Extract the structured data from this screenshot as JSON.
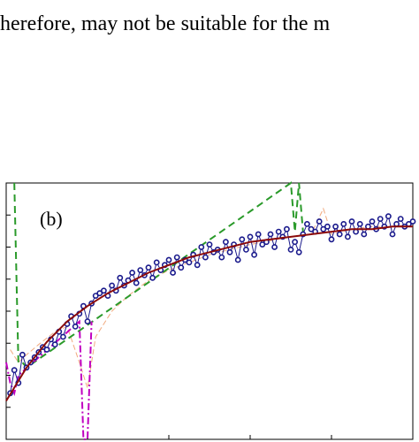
{
  "body_text": "herefore, may not be suitable for the m",
  "figure": {
    "panel_label": "(b)"
  },
  "chart_data": {
    "type": "scatter",
    "title": "",
    "xlabel": "",
    "ylabel": "",
    "xlim": [
      0,
      100
    ],
    "ylim": [
      0,
      100
    ],
    "grid": false,
    "series": [
      {
        "style": "markers-with-thin-line",
        "color": "#1a1a8c",
        "values": [
          [
            1,
            18
          ],
          [
            2,
            27
          ],
          [
            3,
            22
          ],
          [
            4,
            33
          ],
          [
            5,
            28
          ],
          [
            6,
            30
          ],
          [
            7,
            32
          ],
          [
            8,
            34
          ],
          [
            9,
            36
          ],
          [
            10,
            35
          ],
          [
            11,
            39
          ],
          [
            12,
            37
          ],
          [
            13,
            42
          ],
          [
            14,
            40
          ],
          [
            15,
            45
          ],
          [
            16,
            48
          ],
          [
            17,
            44
          ],
          [
            18,
            49
          ],
          [
            19,
            52
          ],
          [
            20,
            46
          ],
          [
            21,
            53
          ],
          [
            22,
            56
          ],
          [
            23,
            57
          ],
          [
            24,
            58
          ],
          [
            25,
            56
          ],
          [
            26,
            60
          ],
          [
            27,
            58
          ],
          [
            28,
            63
          ],
          [
            29,
            60
          ],
          [
            30,
            62
          ],
          [
            31,
            65
          ],
          [
            32,
            61
          ],
          [
            33,
            66
          ],
          [
            34,
            64
          ],
          [
            35,
            67
          ],
          [
            36,
            63
          ],
          [
            37,
            69
          ],
          [
            38,
            66
          ],
          [
            39,
            68
          ],
          [
            40,
            70
          ],
          [
            41,
            65
          ],
          [
            42,
            71
          ],
          [
            43,
            67
          ],
          [
            44,
            70
          ],
          [
            45,
            69
          ],
          [
            46,
            72
          ],
          [
            47,
            68
          ],
          [
            48,
            75
          ],
          [
            49,
            71
          ],
          [
            50,
            76
          ],
          [
            51,
            73
          ],
          [
            52,
            74
          ],
          [
            53,
            71
          ],
          [
            54,
            77
          ],
          [
            55,
            73
          ],
          [
            56,
            76
          ],
          [
            57,
            70
          ],
          [
            58,
            78
          ],
          [
            59,
            74
          ],
          [
            60,
            79
          ],
          [
            61,
            72
          ],
          [
            62,
            80
          ],
          [
            63,
            76
          ],
          [
            64,
            77
          ],
          [
            65,
            80
          ],
          [
            66,
            75
          ],
          [
            67,
            81
          ],
          [
            68,
            79
          ],
          [
            69,
            82
          ],
          [
            70,
            74
          ],
          [
            71,
            77
          ],
          [
            72,
            73
          ],
          [
            73,
            80
          ],
          [
            74,
            84
          ],
          [
            75,
            82
          ],
          [
            76,
            81
          ],
          [
            77,
            85
          ],
          [
            78,
            82
          ],
          [
            79,
            83
          ],
          [
            80,
            78
          ],
          [
            81,
            83
          ],
          [
            82,
            80
          ],
          [
            83,
            84
          ],
          [
            84,
            79
          ],
          [
            85,
            85
          ],
          [
            86,
            81
          ],
          [
            87,
            84
          ],
          [
            88,
            80
          ],
          [
            89,
            83
          ],
          [
            90,
            85
          ],
          [
            91,
            82
          ],
          [
            92,
            86
          ],
          [
            93,
            83
          ],
          [
            94,
            87
          ],
          [
            95,
            80
          ],
          [
            96,
            84
          ],
          [
            97,
            86
          ],
          [
            98,
            83
          ],
          [
            99,
            84
          ],
          [
            100,
            85
          ]
        ]
      },
      {
        "style": "solid-fit",
        "color": "#8b0a0a",
        "values": [
          [
            0,
            15
          ],
          [
            5,
            28
          ],
          [
            10,
            38
          ],
          [
            15,
            46
          ],
          [
            20,
            52
          ],
          [
            25,
            57
          ],
          [
            30,
            61
          ],
          [
            35,
            65
          ],
          [
            40,
            68
          ],
          [
            45,
            71
          ],
          [
            50,
            73
          ],
          [
            55,
            75
          ],
          [
            60,
            77
          ],
          [
            65,
            78
          ],
          [
            70,
            79
          ],
          [
            75,
            80
          ],
          [
            80,
            81
          ],
          [
            85,
            82
          ],
          [
            90,
            82
          ],
          [
            95,
            83
          ],
          [
            100,
            83
          ]
        ]
      },
      {
        "style": "thin-dashed",
        "color": "#f0a070",
        "values": [
          [
            1,
            35
          ],
          [
            3,
            30
          ],
          [
            5,
            33
          ],
          [
            8,
            37
          ],
          [
            12,
            42
          ],
          [
            15,
            44
          ],
          [
            18,
            30
          ],
          [
            20,
            20
          ],
          [
            22,
            40
          ],
          [
            26,
            50
          ],
          [
            30,
            56
          ],
          [
            35,
            62
          ],
          [
            40,
            66
          ],
          [
            50,
            72
          ],
          [
            60,
            76
          ],
          [
            70,
            79
          ],
          [
            75,
            80
          ],
          [
            78,
            90
          ],
          [
            80,
            80
          ],
          [
            85,
            82
          ],
          [
            90,
            83
          ],
          [
            95,
            83
          ],
          [
            100,
            84
          ]
        ]
      },
      {
        "style": "dashed-spike",
        "color": "#2a9a2a",
        "values": [
          [
            2,
            100
          ],
          [
            3,
            30
          ],
          [
            4,
            30
          ],
          [
            5,
            28
          ],
          [
            70,
            100
          ],
          [
            71,
            81
          ],
          [
            72,
            100
          ],
          [
            73,
            81
          ]
        ]
      },
      {
        "style": "dash-dot-spike",
        "color": "#c000c0",
        "values": [
          [
            0,
            30
          ],
          [
            1,
            22
          ],
          [
            2,
            18
          ],
          [
            3,
            25
          ],
          [
            18,
            46
          ],
          [
            19,
            0
          ],
          [
            20,
            0
          ],
          [
            21,
            46
          ]
        ]
      }
    ]
  }
}
